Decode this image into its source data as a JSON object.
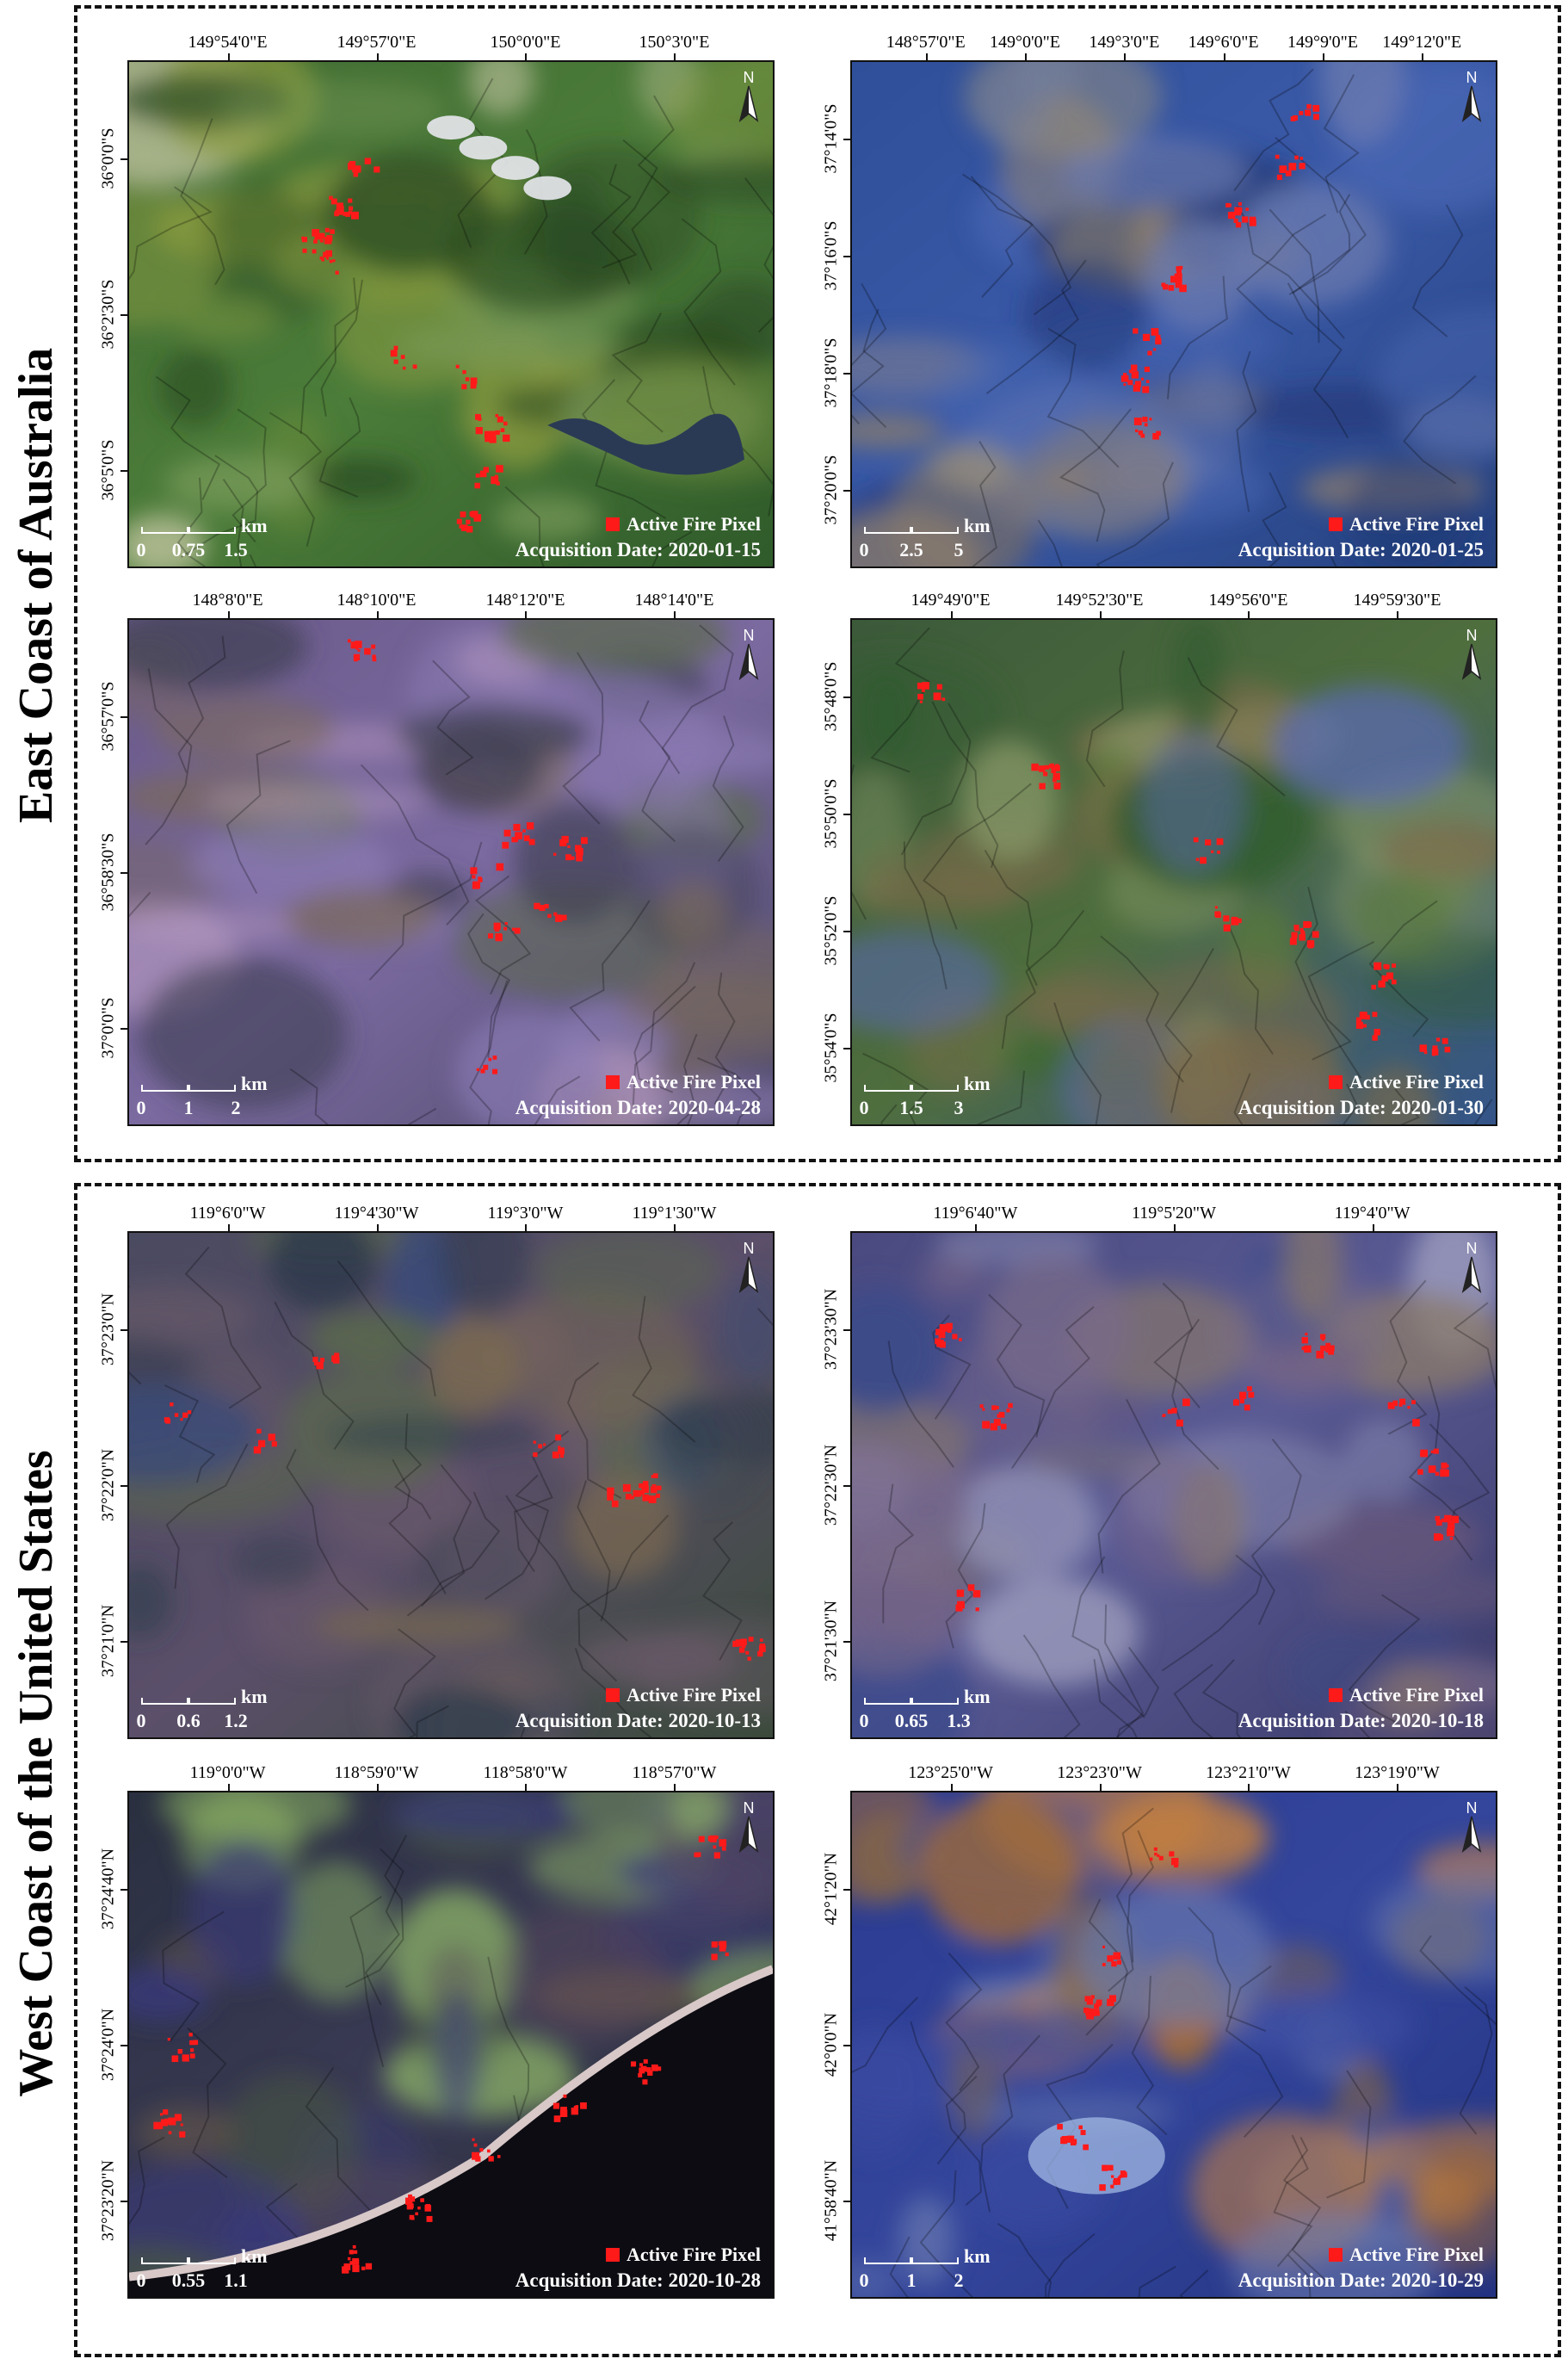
{
  "groups": {
    "east": {
      "label": "East Coast of Australia"
    },
    "west": {
      "label": "West Coast of the United States"
    }
  },
  "legend": {
    "label": "Active Fire Pixel",
    "color": "#ff1a1a"
  },
  "acq_prefix": "Acquisition Date:",
  "north_label": "N",
  "scale_unit": "km",
  "panels": [
    {
      "id": "p1",
      "date": "2020-01-15",
      "xticks": [
        "149°54'0\"E",
        "149°57'0\"E",
        "150°0'0\"E",
        "150°3'0\"E"
      ],
      "yticks": [
        "36°0'0\"S",
        "36°2'30\"S",
        "36°5'0\"S"
      ],
      "scale": [
        "0",
        "0.75",
        "1.5"
      ],
      "style": "green"
    },
    {
      "id": "p2",
      "date": "2020-01-25",
      "xticks": [
        "148°57'0\"E",
        "149°0'0\"E",
        "149°3'0\"E",
        "149°6'0\"E",
        "149°9'0\"E",
        "149°12'0\"E"
      ],
      "yticks": [
        "37°14'0\"S",
        "37°16'0\"S",
        "37°18'0\"S",
        "37°20'0\"S"
      ],
      "scale": [
        "0",
        "2.5",
        "5"
      ],
      "style": "blue"
    },
    {
      "id": "p3",
      "date": "2020-04-28",
      "xticks": [
        "148°8'0\"E",
        "148°10'0\"E",
        "148°12'0\"E",
        "148°14'0\"E"
      ],
      "yticks": [
        "36°57'0\"S",
        "36°58'30\"S",
        "37°0'0\"S"
      ],
      "scale": [
        "0",
        "1",
        "2"
      ],
      "style": "purple"
    },
    {
      "id": "p4",
      "date": "2020-01-30",
      "xticks": [
        "149°49'0\"E",
        "149°52'30\"E",
        "149°56'0\"E",
        "149°59'30\"E"
      ],
      "yticks": [
        "35°48'0\"S",
        "35°50'0\"S",
        "35°52'0\"S",
        "35°54'0\"S"
      ],
      "scale": [
        "0",
        "1.5",
        "3"
      ],
      "style": "greenblue"
    },
    {
      "id": "p5",
      "date": "2020-10-13",
      "xticks": [
        "119°6'0\"W",
        "119°4'30\"W",
        "119°3'0\"W",
        "119°1'30\"W"
      ],
      "yticks": [
        "37°23'0\"N",
        "37°22'0\"N",
        "37°21'0\"N"
      ],
      "scale": [
        "0",
        "0.6",
        "1.2"
      ],
      "style": "mixed"
    },
    {
      "id": "p6",
      "date": "2020-10-18",
      "xticks": [
        "119°6'40\"W",
        "119°5'20\"W",
        "119°4'0\"W"
      ],
      "yticks": [
        "37°23'30\"N",
        "37°22'30\"N",
        "37°21'30\"N"
      ],
      "scale": [
        "0",
        "0.65",
        "1.3"
      ],
      "style": "bluepurple"
    },
    {
      "id": "p7",
      "date": "2020-10-28",
      "xticks": [
        "119°0'0\"W",
        "118°59'0\"W",
        "118°58'0\"W",
        "118°57'0\"W"
      ],
      "yticks": [
        "37°24'40\"N",
        "37°24'0\"N",
        "37°23'20\"N"
      ],
      "scale": [
        "0",
        "0.55",
        "1.1"
      ],
      "style": "dark"
    },
    {
      "id": "p8",
      "date": "2020-10-29",
      "xticks": [
        "123°25'0\"W",
        "123°23'0\"W",
        "123°21'0\"W",
        "123°19'0\"W"
      ],
      "yticks": [
        "42°1'20\"N",
        "42°0'0\"N",
        "41°58'40\"N"
      ],
      "scale": [
        "0",
        "1",
        "2"
      ],
      "style": "orangeblue"
    }
  ]
}
